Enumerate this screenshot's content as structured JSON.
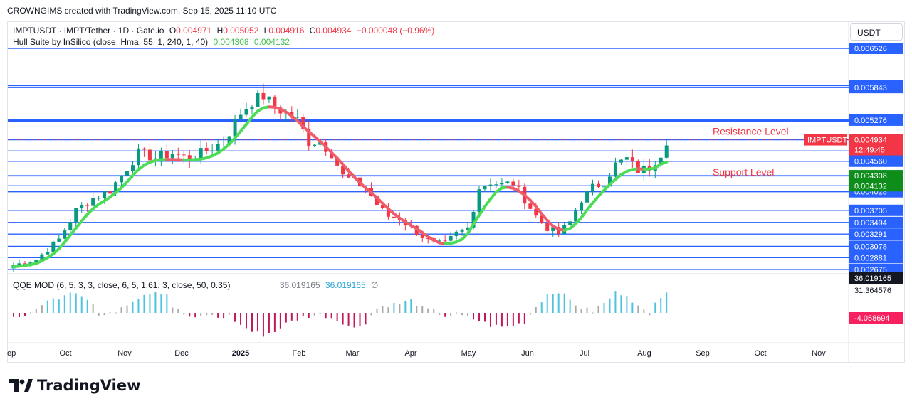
{
  "header": {
    "created": "CROWNGIMS created with TradingView.com, Sep 15, 2025 11:10 UTC"
  },
  "legend": {
    "symbol": "IMPTUSDT · IMPT/Tether · 1D · Gate.io",
    "o_label": "O",
    "o_value": "0.004971",
    "h_label": "H",
    "h_value": "0.005052",
    "l_label": "L",
    "l_value": "0.004916",
    "c_label": "C",
    "c_value": "0.004934",
    "change": "−0.000048 (−0.96%)",
    "hull_label": "Hull Suite by InSilico (close, Hma, 55, 1, 240, 1, 40)",
    "hull_v1": "0.004308",
    "hull_v2": "0.004132",
    "qqe_label": "QQE MOD (6, 5, 3, 3, close, 6, 5, 1.61, 3, close, 50, 0.35)",
    "qqe_v1": "36.019165",
    "qqe_v2": "36.019165",
    "qqe_v3": "∅"
  },
  "currency": "USDT",
  "brand": "TradingView",
  "colors": {
    "up": "#089981",
    "down": "#f23645",
    "level": "#2962ff",
    "hull_up": "#4cdc56",
    "hull_down": "#ef5d6b",
    "qqe_up": "#4ec3e0",
    "qqe_down": "#c2185b",
    "qqe_gray": "#a8a8a8"
  },
  "chart_data": {
    "type": "candlestick",
    "symbol": "IMPTUSDT",
    "x_ticks": [
      "ep",
      "Oct",
      "Nov",
      "Dec",
      "2025",
      "Feb",
      "Mar",
      "Apr",
      "May",
      "Jun",
      "Jul",
      "Aug",
      "Sep",
      "Oct",
      "Nov"
    ],
    "y_range": [
      0.0026,
      0.00665
    ],
    "price_levels": [
      0.006526,
      0.005877,
      0.005843,
      0.005276,
      0.004934,
      0.004739,
      0.00456,
      0.004308,
      0.004304,
      0.004132,
      0.004028,
      0.003705,
      0.003494,
      0.003291,
      0.003078,
      0.002881,
      0.002675
    ],
    "level_labels": [
      "0.006526",
      "0.005877",
      "0.005843",
      "0.005276",
      "0.004934",
      "0.004739",
      "0.004560",
      "0.004308",
      "0.004304",
      "0.004132",
      "0.004028",
      "0.003705",
      "0.003494",
      "0.003291",
      "0.003078",
      "0.002881",
      "0.002675"
    ],
    "axis_badges": {
      "last_symbol": "IMPTUSDT",
      "last_value": "0.004934",
      "countdown": "12:49:45",
      "hull_1": "0.004308",
      "hull_2": "0.004132"
    },
    "annotations": [
      {
        "text": "Resistance Level",
        "price": 0.00502
      },
      {
        "text": "Support Level",
        "price": 0.00431
      }
    ],
    "close_path": [
      [
        0,
        0.00275
      ],
      [
        4,
        0.00285
      ],
      [
        8,
        0.0032
      ],
      [
        11,
        0.0037
      ],
      [
        14,
        0.00392
      ],
      [
        17,
        0.00405
      ],
      [
        20,
        0.00445
      ],
      [
        22,
        0.0047
      ],
      [
        25,
        0.00462
      ],
      [
        28,
        0.0047
      ],
      [
        31,
        0.0046
      ],
      [
        34,
        0.00475
      ],
      [
        37,
        0.0049
      ],
      [
        40,
        0.0054
      ],
      [
        42,
        0.0056
      ],
      [
        44,
        0.0057
      ],
      [
        46,
        0.0055
      ],
      [
        48,
        0.0054
      ],
      [
        50,
        0.00528
      ],
      [
        52,
        0.0049
      ],
      [
        54,
        0.0049
      ],
      [
        56,
        0.0047
      ],
      [
        58,
        0.0043
      ],
      [
        60,
        0.0042
      ],
      [
        62,
        0.0041
      ],
      [
        64,
        0.0038
      ],
      [
        66,
        0.0036
      ],
      [
        68,
        0.00357
      ],
      [
        70,
        0.0034
      ],
      [
        72,
        0.00325
      ],
      [
        74,
        0.00312
      ],
      [
        76,
        0.00312
      ],
      [
        78,
        0.0033
      ],
      [
        80,
        0.0034
      ],
      [
        82,
        0.0041
      ],
      [
        84,
        0.0042
      ],
      [
        86,
        0.00415
      ],
      [
        88,
        0.00418
      ],
      [
        90,
        0.0039
      ],
      [
        92,
        0.0036
      ],
      [
        94,
        0.0034
      ],
      [
        96,
        0.0033
      ],
      [
        98,
        0.0035
      ],
      [
        100,
        0.0039
      ],
      [
        102,
        0.0041
      ],
      [
        104,
        0.0042
      ],
      [
        106,
        0.0045
      ],
      [
        108,
        0.0046
      ],
      [
        110,
        0.0044
      ],
      [
        112,
        0.00445
      ],
      [
        114,
        0.0047
      ],
      [
        115,
        0.00493
      ]
    ],
    "qqe_path": [
      [
        0,
        -3
      ],
      [
        3,
        -1
      ],
      [
        5,
        6
      ],
      [
        8,
        10
      ],
      [
        10,
        14
      ],
      [
        12,
        12
      ],
      [
        14,
        6
      ],
      [
        15,
        -2
      ],
      [
        17,
        -1
      ],
      [
        19,
        4
      ],
      [
        21,
        8
      ],
      [
        23,
        12
      ],
      [
        25,
        14
      ],
      [
        27,
        12
      ],
      [
        28,
        4
      ],
      [
        30,
        -1
      ],
      [
        32,
        -4
      ],
      [
        34,
        -1
      ],
      [
        36,
        -3
      ],
      [
        38,
        -2
      ],
      [
        40,
        -8
      ],
      [
        42,
        -12
      ],
      [
        44,
        -14
      ],
      [
        46,
        -12
      ],
      [
        48,
        -7
      ],
      [
        50,
        -4
      ],
      [
        52,
        -2
      ],
      [
        54,
        -1
      ],
      [
        56,
        -3
      ],
      [
        58,
        -6
      ],
      [
        60,
        -10
      ],
      [
        62,
        -6
      ],
      [
        64,
        3
      ],
      [
        66,
        5
      ],
      [
        68,
        6
      ],
      [
        70,
        8
      ],
      [
        72,
        3
      ],
      [
        74,
        1
      ],
      [
        76,
        -2
      ],
      [
        78,
        -1
      ],
      [
        80,
        -3
      ],
      [
        82,
        -5
      ],
      [
        84,
        -8
      ],
      [
        86,
        -9
      ],
      [
        88,
        -8
      ],
      [
        90,
        -6
      ],
      [
        92,
        4
      ],
      [
        94,
        12
      ],
      [
        96,
        14
      ],
      [
        98,
        8
      ],
      [
        100,
        3
      ],
      [
        102,
        1
      ],
      [
        104,
        6
      ],
      [
        106,
        13
      ],
      [
        108,
        12
      ],
      [
        110,
        4
      ],
      [
        112,
        -2
      ],
      [
        113,
        8
      ],
      [
        115,
        14
      ]
    ]
  }
}
